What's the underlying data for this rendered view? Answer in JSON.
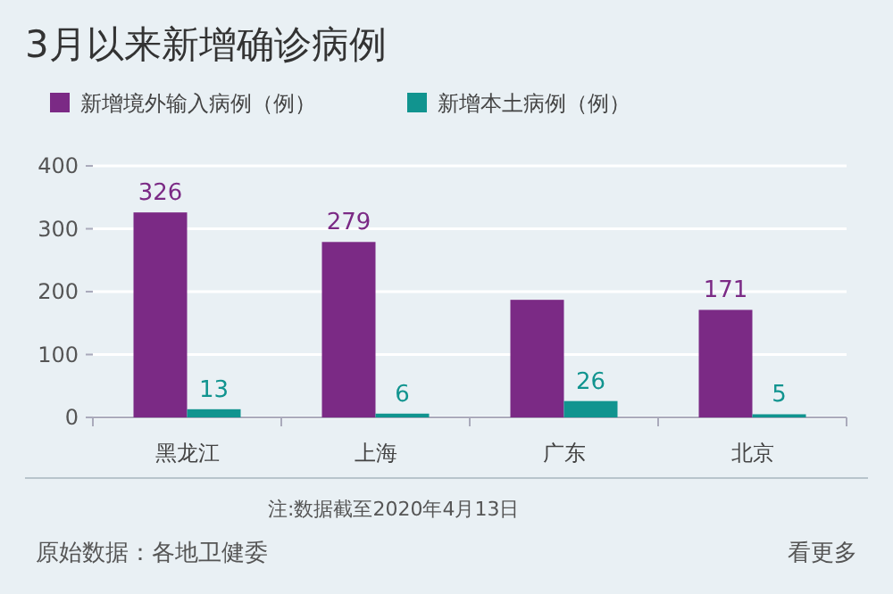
{
  "chart_data": {
    "type": "bar",
    "title": "3月以来新增确诊病例",
    "categories": [
      "黑龙江",
      "上海",
      "广东",
      "北京"
    ],
    "series": [
      {
        "name": "新增境外输入病例（例）",
        "color": "#7b2a85",
        "values": [
          326,
          279,
          187,
          171
        ],
        "value_labels": [
          "326",
          "279",
          null,
          "171"
        ]
      },
      {
        "name": "新增本土病例（例）",
        "color": "#11948f",
        "values": [
          13,
          6,
          26,
          5
        ],
        "value_labels": [
          "13",
          "6",
          "26",
          "5"
        ]
      }
    ],
    "ylim": [
      0,
      400
    ],
    "yticks": [
      0,
      100,
      200,
      300,
      400
    ],
    "grid": "y",
    "legend": "top",
    "annotations": [
      "注:数据截至2020年4月13日",
      "原始数据：各地卫健委",
      "看更多"
    ]
  }
}
